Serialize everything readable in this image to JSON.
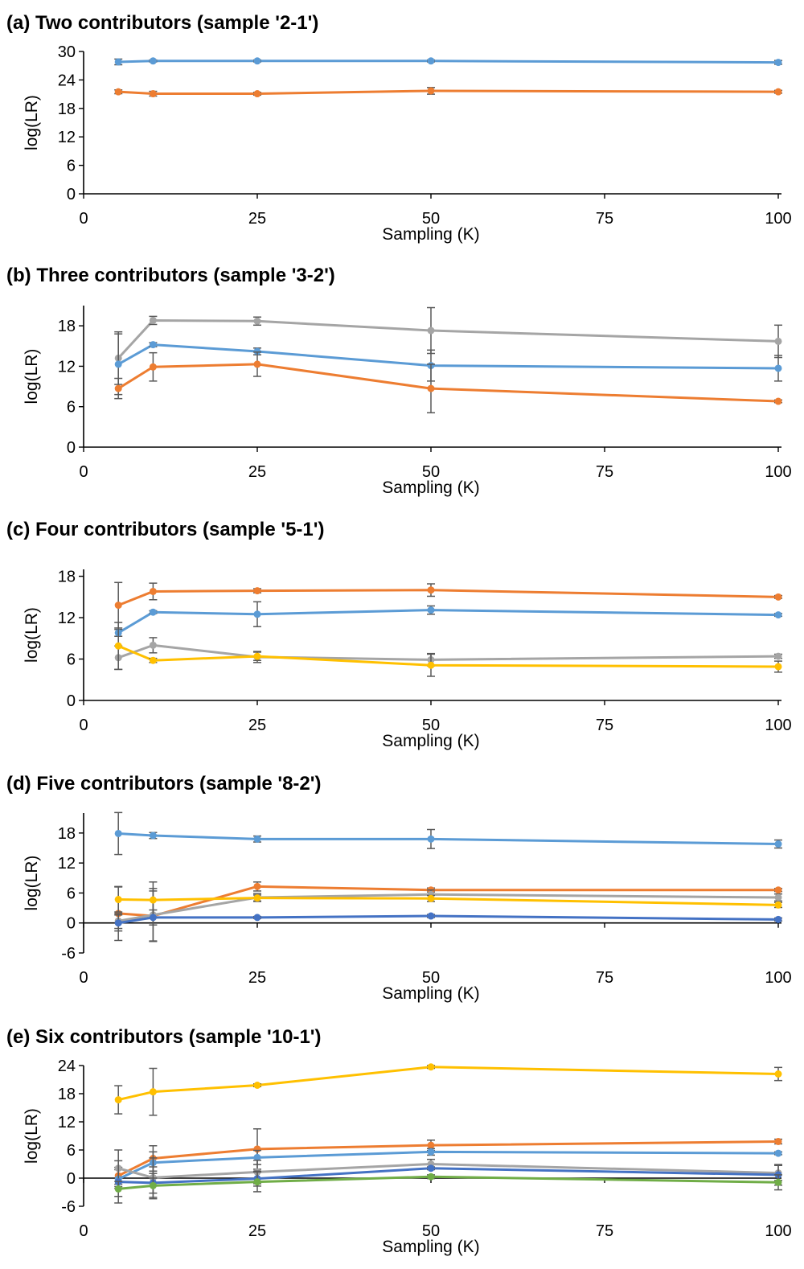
{
  "chart_data": [
    {
      "type": "line",
      "title": "(a)  Two contributors (sample '2-1')",
      "xlabel": "Sampling  (K)",
      "ylabel": "log(LR)",
      "xlim": [
        0,
        100
      ],
      "xticks": [
        0,
        25,
        50,
        75,
        100
      ],
      "ylim": [
        0,
        30
      ],
      "yticks": [
        0,
        6,
        12,
        18,
        24,
        30
      ],
      "grid": false,
      "x": [
        5,
        10,
        25,
        50,
        100
      ],
      "series": [
        {
          "color": "#5B9BD5",
          "values": [
            27.8,
            28.0,
            28.0,
            28.0,
            27.7
          ],
          "errors": [
            0.6,
            0.2,
            0.2,
            0.2,
            0.4
          ]
        },
        {
          "color": "#ED7D31",
          "values": [
            21.5,
            21.1,
            21.1,
            21.7,
            21.5
          ],
          "errors": [
            0.4,
            0.5,
            0.3,
            0.7,
            0.3
          ]
        }
      ]
    },
    {
      "type": "line",
      "title": "(b)  Three contributors (sample '3-2')",
      "xlabel": "Sampling  (K)",
      "ylabel": "log(LR)",
      "xlim": [
        0,
        100
      ],
      "xticks": [
        0,
        25,
        50,
        75,
        100
      ],
      "ylim": [
        0,
        21
      ],
      "yticks": [
        0,
        6,
        12,
        18
      ],
      "grid": false,
      "x": [
        5,
        10,
        25,
        50,
        100
      ],
      "series": [
        {
          "color": "#A5A5A5",
          "values": [
            13.2,
            18.8,
            18.7,
            17.3,
            15.7
          ],
          "errors": [
            3.9,
            0.6,
            0.6,
            3.4,
            2.4
          ]
        },
        {
          "color": "#5B9BD5",
          "values": [
            12.3,
            15.2,
            14.2,
            12.1,
            11.7
          ],
          "errors": [
            4.5,
            0.3,
            0.5,
            2.3,
            1.9
          ]
        },
        {
          "color": "#ED7D31",
          "values": [
            8.7,
            11.9,
            12.3,
            8.7,
            6.8
          ],
          "errors": [
            1.5,
            2.1,
            1.8,
            3.6,
            0.2
          ]
        }
      ]
    },
    {
      "type": "line",
      "title": "(c)  Four contributors (sample '5-1')",
      "xlabel": "Sampling  (K)",
      "ylabel": "log(LR)",
      "xlim": [
        0,
        100
      ],
      "xticks": [
        0,
        25,
        50,
        75,
        100
      ],
      "ylim": [
        0,
        19
      ],
      "yticks": [
        0,
        6,
        12,
        18
      ],
      "grid": false,
      "x": [
        5,
        10,
        25,
        50,
        100
      ],
      "series": [
        {
          "color": "#ED7D31",
          "values": [
            13.8,
            15.8,
            15.9,
            16.0,
            15.0
          ],
          "errors": [
            3.3,
            1.2,
            0.3,
            0.9,
            0.2
          ]
        },
        {
          "color": "#5B9BD5",
          "values": [
            9.8,
            12.8,
            12.5,
            13.1,
            12.4
          ],
          "errors": [
            0.5,
            0.2,
            1.8,
            0.6,
            0.2
          ]
        },
        {
          "color": "#A5A5A5",
          "values": [
            6.2,
            8.0,
            6.3,
            5.9,
            6.4
          ],
          "errors": [
            1.7,
            1.1,
            0.8,
            0.9,
            0.3
          ]
        },
        {
          "color": "#FFC000",
          "values": [
            7.9,
            5.8,
            6.4,
            5.1,
            4.9
          ],
          "errors": [
            3.4,
            0.3,
            0.6,
            1.6,
            0.8
          ]
        }
      ]
    },
    {
      "type": "line",
      "title": "(d)  Five contributors (sample '8-2')",
      "xlabel": "Sampling  (K)",
      "ylabel": "log(LR)",
      "xlim": [
        0,
        100
      ],
      "xticks": [
        0,
        25,
        50,
        75,
        100
      ],
      "ylim": [
        -6,
        22
      ],
      "yticks": [
        -6,
        0,
        6,
        12,
        18
      ],
      "grid": false,
      "x": [
        5,
        10,
        25,
        50,
        100
      ],
      "series": [
        {
          "color": "#5B9BD5",
          "values": [
            17.9,
            17.5,
            16.8,
            16.8,
            15.8
          ],
          "errors": [
            4.2,
            0.6,
            0.6,
            1.9,
            0.8
          ]
        },
        {
          "color": "#ED7D31",
          "values": [
            1.9,
            1.4,
            7.3,
            6.6,
            6.6
          ],
          "errors": [
            5.4,
            5.0,
            0.9,
            0.4,
            0.3
          ]
        },
        {
          "color": "#A5A5A5",
          "values": [
            0.4,
            1.6,
            5.1,
            5.7,
            5.1
          ],
          "errors": [
            1.5,
            5.3,
            0.8,
            0.9,
            0.7
          ]
        },
        {
          "color": "#FFC000",
          "values": [
            4.7,
            4.6,
            5.0,
            4.9,
            3.6
          ],
          "errors": [
            2.5,
            3.6,
            0.6,
            0.6,
            0.5
          ]
        },
        {
          "color": "#4472C4",
          "values": [
            0.0,
            1.1,
            1.1,
            1.4,
            0.7
          ],
          "errors": [
            1.6,
            1.5,
            0.2,
            0.3,
            0.3
          ]
        }
      ]
    },
    {
      "type": "line",
      "title": "(e)  Six contributors (sample '10-1')",
      "xlabel": "Sampling  (K)",
      "ylabel": "log(LR)",
      "xlim": [
        0,
        100
      ],
      "xticks": [
        0,
        25,
        50,
        75,
        100
      ],
      "ylim": [
        -6,
        24
      ],
      "yticks": [
        -6,
        0,
        6,
        12,
        18,
        24
      ],
      "grid": false,
      "x": [
        5,
        10,
        25,
        50,
        100
      ],
      "series": [
        {
          "color": "#FFC000",
          "values": [
            16.7,
            18.4,
            19.8,
            23.7,
            22.2
          ],
          "errors": [
            3.0,
            5.0,
            0.3,
            0.3,
            1.4
          ]
        },
        {
          "color": "#ED7D31",
          "values": [
            0.5,
            4.2,
            6.2,
            7.0,
            7.8
          ],
          "errors": [
            1.8,
            2.7,
            4.3,
            1.1,
            0.5
          ]
        },
        {
          "color": "#5B9BD5",
          "values": [
            -0.2,
            3.3,
            4.4,
            5.6,
            5.3
          ],
          "errors": [
            2.0,
            2.3,
            1.5,
            0.7,
            0.3
          ]
        },
        {
          "color": "#A5A5A5",
          "values": [
            2.1,
            0.1,
            1.3,
            3.0,
            1.1
          ],
          "errors": [
            3.9,
            4.2,
            2.5,
            1.0,
            1.6
          ]
        },
        {
          "color": "#4472C4",
          "values": [
            -0.8,
            -1.0,
            -0.1,
            2.1,
            0.7
          ],
          "errors": [
            4.5,
            3.4,
            1.6,
            0.3,
            2.2
          ]
        },
        {
          "color": "#70AD47",
          "values": [
            -2.3,
            -1.6,
            -0.8,
            0.3,
            -0.9
          ],
          "errors": [
            1.6,
            1.6,
            2.1,
            0.4,
            1.6
          ]
        }
      ]
    }
  ]
}
